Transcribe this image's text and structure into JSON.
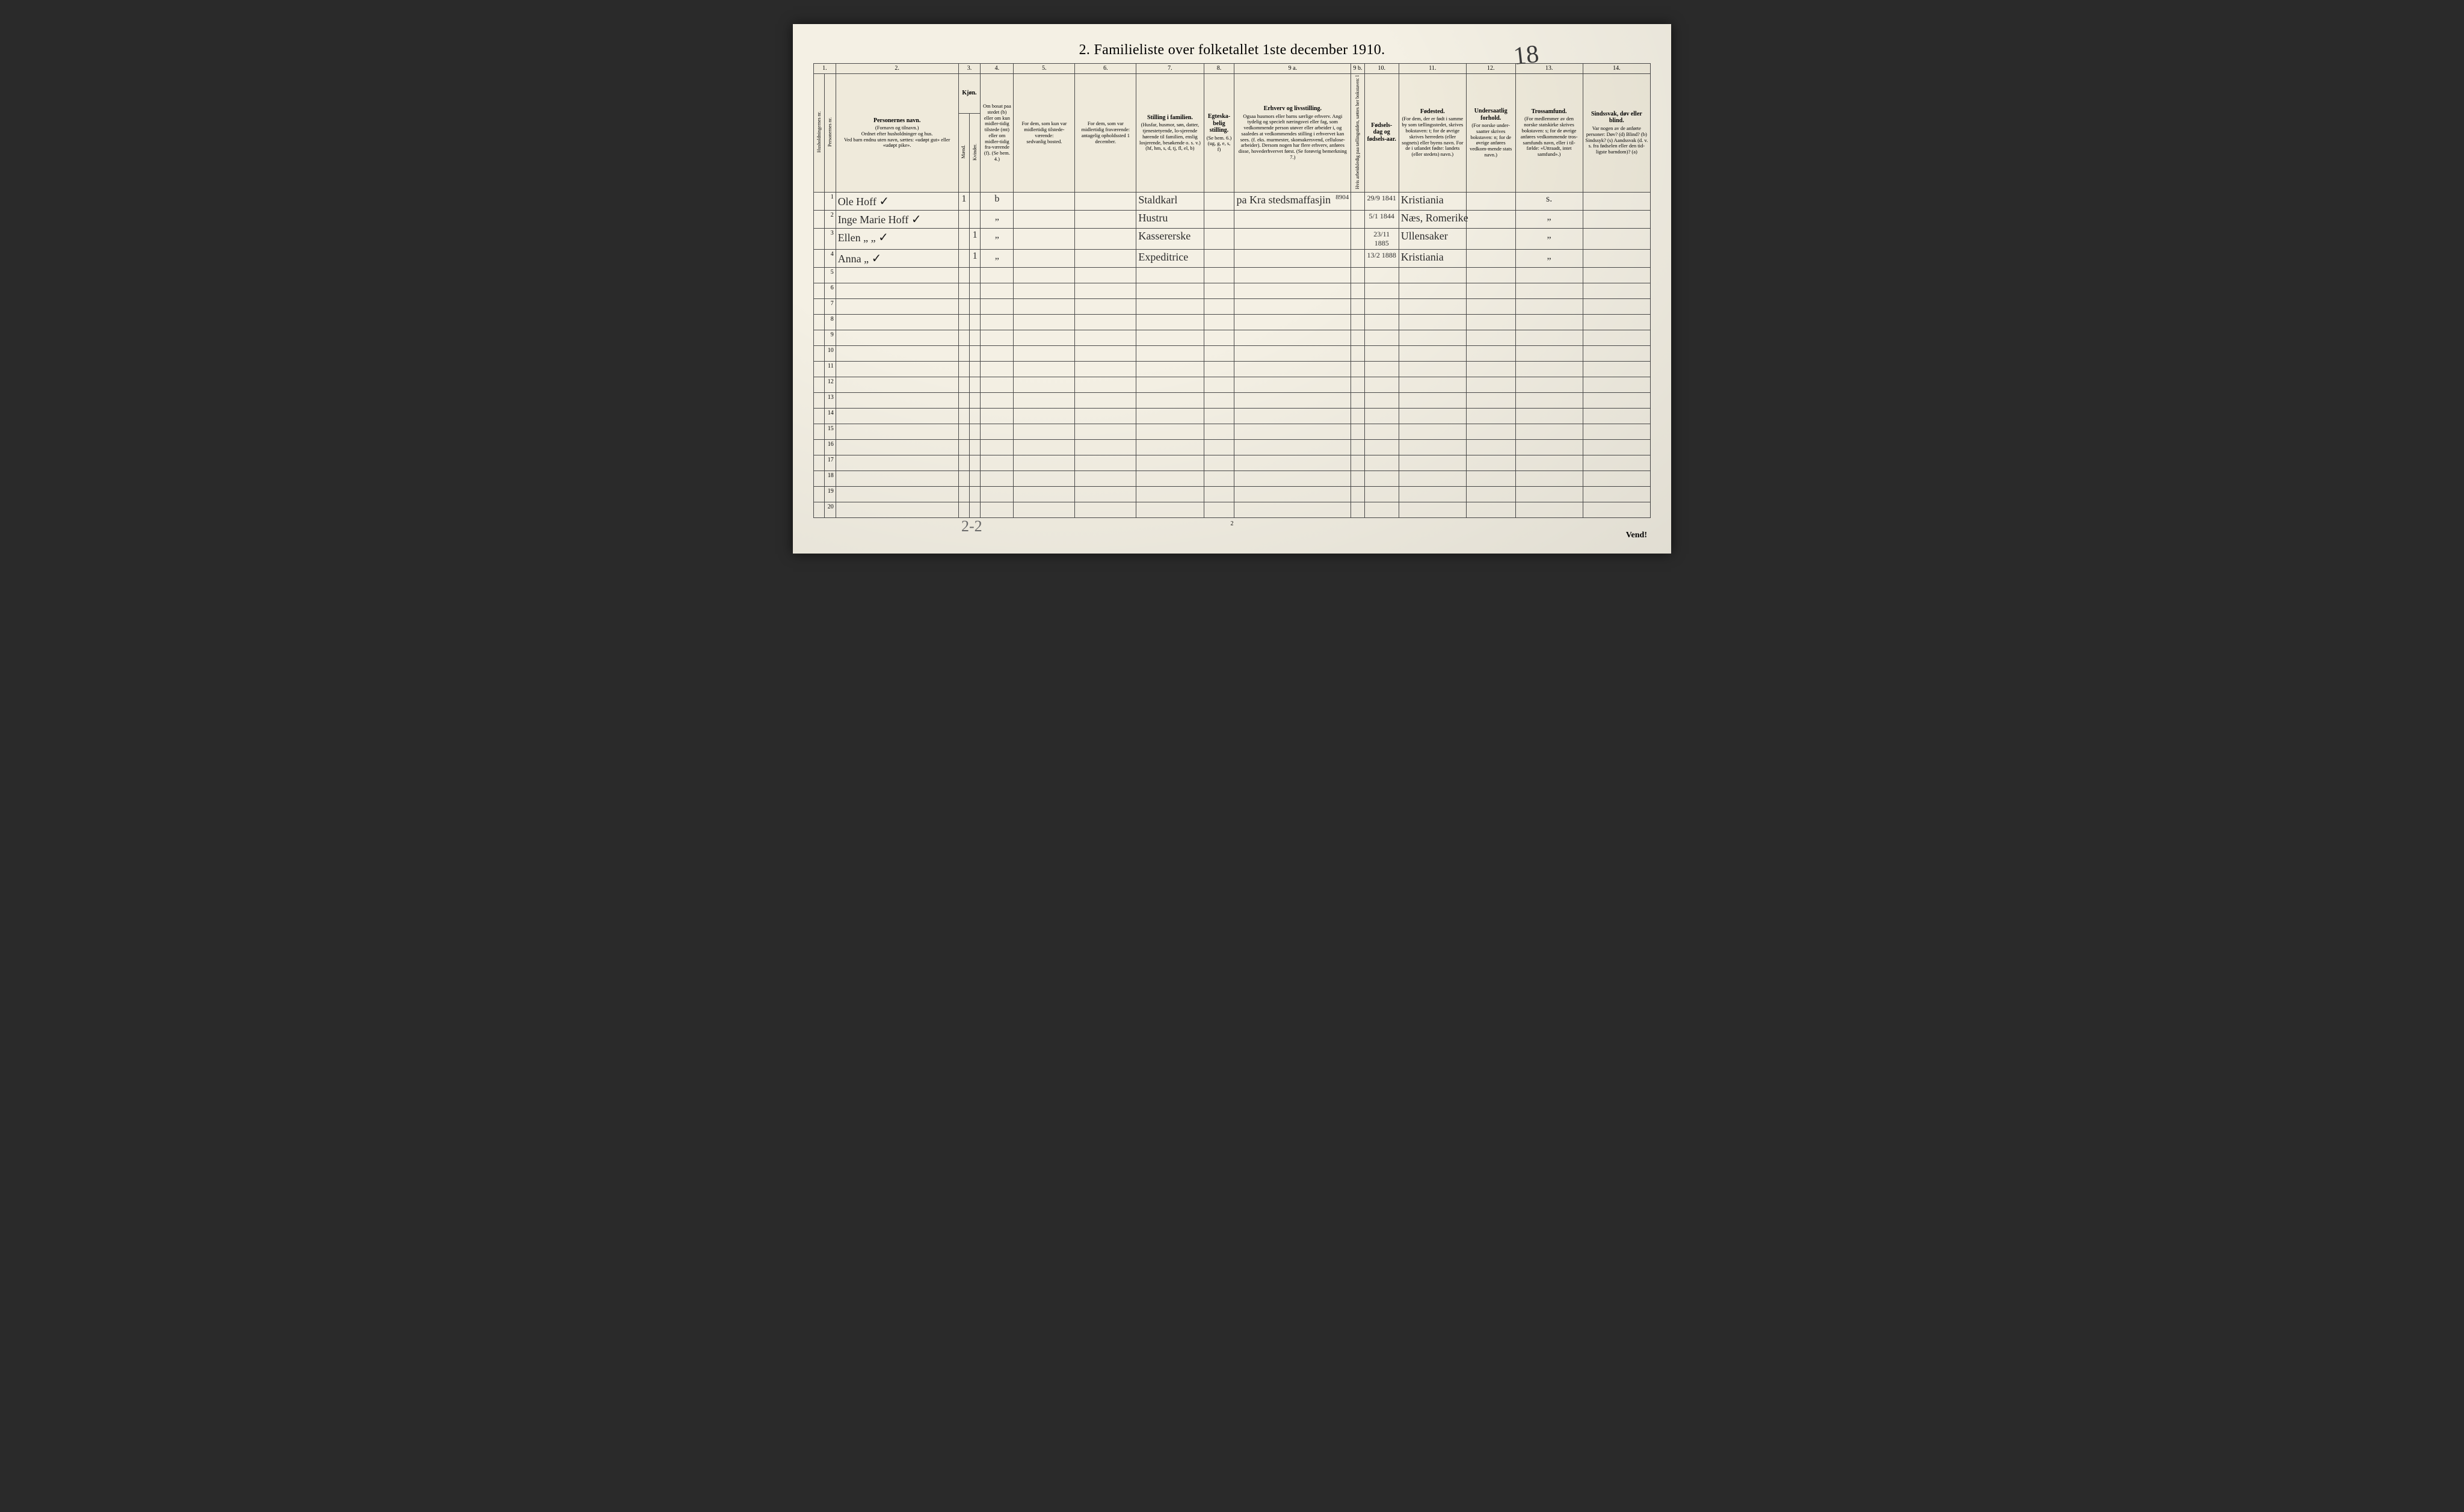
{
  "doc": {
    "title": "2.  Familieliste over folketallet 1ste december 1910.",
    "handwritten_page_number": "18",
    "pencil_note": "2-2",
    "footer_page": "2",
    "vend": "Vend!"
  },
  "columns": {
    "c1": "1.",
    "c2": {
      "num": "2.",
      "title": "Personernes navn.",
      "sub1": "(Fornavn og tilnavn.)",
      "sub2": "Ordnet efter husholdninger og hus.",
      "sub3": "Ved barn endnu uten navn, sættes: «udøpt gut» eller «udøpt pike»."
    },
    "c3": {
      "num": "3.",
      "title": "Kjøn.",
      "m": "Mænd.",
      "k": "Kvinder.",
      "mk": "m.  k."
    },
    "c4": {
      "num": "4.",
      "title": "Om bosat paa stedet (b) eller om kun midler-tidig tilstede (mt) eller om midler-tidig fra-værende (f). (Se bem. 4.)"
    },
    "c5": {
      "num": "5.",
      "title": "For dem, som kun var midlertidig tilstede-værende:",
      "sub": "sedvanlig bosted."
    },
    "c6": {
      "num": "6.",
      "title": "For dem, som var midlertidig fraværende:",
      "sub": "antagelig opholdssted 1 december."
    },
    "c7": {
      "num": "7.",
      "title": "Stilling i familien.",
      "sub": "(Husfar, husmor, søn, datter, tjenestetyende, lo-sjerende hørende til familien, enslig losjerende, besøkende o. s. v.) (hf, hm, s, d, tj, fl, el, b)"
    },
    "c8": {
      "num": "8.",
      "title": "Egteska-belig stilling.",
      "sub": "(Se bem. 6.) (ug, g, e, s, f)"
    },
    "c9a": {
      "num": "9 a.",
      "title": "Erhverv og livsstilling.",
      "sub": "Ogsaa husmors eller barns særlige erhverv. Angi tydelig og specielt næringsvei eller fag, som vedkommende person utøver eller arbeider i, og saaledes at vedkommendes stilling i erhvervet kan sees. (f. eks. murmester, skomakersvend, cellulose-arbeider). Dersom nogen har flere erhverv, anføres disse, hovederhvervet først. (Se forøvrig bemerkning 7.)"
    },
    "c9b": {
      "num": "9 b.",
      "title": "Hvis arbeidsledig paa tællingstiden, sættes her bokstaven: l"
    },
    "c10": {
      "num": "10.",
      "title": "Fødsels-dag og fødsels-aar."
    },
    "c11": {
      "num": "11.",
      "title": "Fødested.",
      "sub": "(For dem, der er født i samme by som tællingsstedet, skrives bokstaven: t; for de øvrige skrives herredets (eller sognets) eller byens navn. For de i utlandet fødte: landets (eller stedets) navn.)"
    },
    "c12": {
      "num": "12.",
      "title": "Undersaatlig forhold.",
      "sub": "(For norske under-saatter skrives bokstaven: n; for de øvrige anføres vedkom-mende stats navn.)"
    },
    "c13": {
      "num": "13.",
      "title": "Trossamfund.",
      "sub": "(For medlemmer av den norske statskirke skrives bokstaven: s; for de øvrige anføres vedkommende tros-samfunds navn, eller i til-fælde: «Uttraadt, intet samfund».)"
    },
    "c14": {
      "num": "14.",
      "title": "Sindssvak, døv eller blind.",
      "sub": "Var nogen av de anførte personer: Døv? (d) Blind? (b) Sindssyk? (s) Aandssvak (d. v. s. fra fødselen eller den tid-ligste barndom)? (a)"
    },
    "hh": "Husholdningernes nr.",
    "pn": "Personernes nr."
  },
  "rows": [
    {
      "n": "1",
      "name": "Ole Hoff",
      "tick": "✓",
      "mk": "1",
      "bosat": "b",
      "stilling": "Staldkarl",
      "erhverv": "pa Kra stedsmaffasjin",
      "erhverv_num": "8904",
      "dob": "29/9 1841",
      "fodested": "Kristiania",
      "tros": "s."
    },
    {
      "n": "2",
      "name": "Inge Marie Hoff",
      "tick": "✓",
      "mk": "",
      "bosat": "„",
      "stilling": "Hustru",
      "erhverv": "",
      "erhverv_num": "",
      "dob": "5/1 1844",
      "fodested": "Næs, Romerike",
      "tros": "„"
    },
    {
      "n": "3",
      "name": "Ellen   „       „",
      "tick": "✓",
      "mk": "1",
      "bosat": "„",
      "stilling": "Kassererske",
      "erhverv": "",
      "erhverv_num": "",
      "dob": "23/11 1885",
      "fodested": "Ullensaker",
      "tros": "„"
    },
    {
      "n": "4",
      "name": "Anna  „",
      "tick": "✓",
      "mk": "1",
      "bosat": "„",
      "stilling": "Expeditrice",
      "erhverv": "",
      "erhverv_num": "",
      "dob": "13/2 1888",
      "fodested": "Kristiania",
      "tros": "„"
    }
  ],
  "empty_rows": [
    "5",
    "6",
    "7",
    "8",
    "9",
    "10",
    "11",
    "12",
    "13",
    "14",
    "15",
    "16",
    "17",
    "18",
    "19",
    "20"
  ],
  "colors": {
    "paper": "#f4f0e4",
    "ink": "#2b2b2b",
    "rule": "#4a4a4a",
    "pencil": "#6a6a6a"
  }
}
